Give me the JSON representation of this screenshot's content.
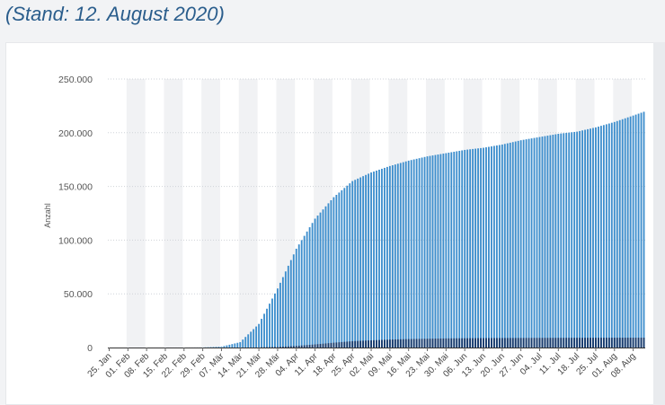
{
  "header": {
    "title": "(Stand: 12. August 2020)"
  },
  "colors": {
    "background": "#f2f3f5",
    "card": "#ffffff",
    "title": "#2a5d8c",
    "series_cases": "#3d8ecd",
    "series_deaths": "#16386a",
    "gridline": "#cfd3d8",
    "band": "#f1f2f4"
  },
  "chart_data": {
    "type": "bar",
    "title": "",
    "ylabel": "Anzahl",
    "xlabel": "",
    "ylim": [
      0,
      250000
    ],
    "yticks": [
      0,
      50000,
      100000,
      150000,
      200000,
      250000
    ],
    "ytick_labels": [
      "0",
      "50.000",
      "100.000",
      "150.000",
      "200.000",
      "250.000"
    ],
    "grid": true,
    "stacked": false,
    "x_start": "2020-01-25",
    "x_end": "2020-08-12",
    "xtick_labels": [
      "25. Jan",
      "01. Feb",
      "08. Feb",
      "15. Feb",
      "22. Feb",
      "29. Feb",
      "07. Mär",
      "14. Mär",
      "21. Mär",
      "28. Mär",
      "04. Apr",
      "11. Apr",
      "18. Apr",
      "25. Apr",
      "02. Mai",
      "09. Mai",
      "16. Mai",
      "23. Mai",
      "30. Mai",
      "06. Jun",
      "13. Jun",
      "20. Jun",
      "27. Jun",
      "04. Jul",
      "11. Jul",
      "18. Jul",
      "25. Jul",
      "01. Aug",
      "08. Aug"
    ],
    "series": [
      {
        "color": "#3d8ecd",
        "weekly_values": [
          {
            "date": "2020-01-25",
            "value": 0
          },
          {
            "date": "2020-02-01",
            "value": 10
          },
          {
            "date": "2020-02-08",
            "value": 15
          },
          {
            "date": "2020-02-15",
            "value": 16
          },
          {
            "date": "2020-02-22",
            "value": 20
          },
          {
            "date": "2020-02-29",
            "value": 100
          },
          {
            "date": "2020-03-07",
            "value": 800
          },
          {
            "date": "2020-03-14",
            "value": 5000
          },
          {
            "date": "2020-03-21",
            "value": 22000
          },
          {
            "date": "2020-03-28",
            "value": 55000
          },
          {
            "date": "2020-04-04",
            "value": 92000
          },
          {
            "date": "2020-04-11",
            "value": 120000
          },
          {
            "date": "2020-04-18",
            "value": 140000
          },
          {
            "date": "2020-04-25",
            "value": 155000
          },
          {
            "date": "2020-05-02",
            "value": 163000
          },
          {
            "date": "2020-05-09",
            "value": 169000
          },
          {
            "date": "2020-05-16",
            "value": 174000
          },
          {
            "date": "2020-05-23",
            "value": 178000
          },
          {
            "date": "2020-05-30",
            "value": 181000
          },
          {
            "date": "2020-06-06",
            "value": 184000
          },
          {
            "date": "2020-06-13",
            "value": 186000
          },
          {
            "date": "2020-06-20",
            "value": 189000
          },
          {
            "date": "2020-06-27",
            "value": 193000
          },
          {
            "date": "2020-07-04",
            "value": 196000
          },
          {
            "date": "2020-07-11",
            "value": 199000
          },
          {
            "date": "2020-07-18",
            "value": 201000
          },
          {
            "date": "2020-07-25",
            "value": 205000
          },
          {
            "date": "2020-08-01",
            "value": 210000
          },
          {
            "date": "2020-08-08",
            "value": 216000
          },
          {
            "date": "2020-08-12",
            "value": 219500
          }
        ]
      },
      {
        "color": "#16386a",
        "weekly_values": [
          {
            "date": "2020-01-25",
            "value": 0
          },
          {
            "date": "2020-03-07",
            "value": 0
          },
          {
            "date": "2020-03-14",
            "value": 10
          },
          {
            "date": "2020-03-21",
            "value": 100
          },
          {
            "date": "2020-03-28",
            "value": 500
          },
          {
            "date": "2020-04-04",
            "value": 1500
          },
          {
            "date": "2020-04-11",
            "value": 2900
          },
          {
            "date": "2020-04-18",
            "value": 4500
          },
          {
            "date": "2020-04-25",
            "value": 5900
          },
          {
            "date": "2020-05-02",
            "value": 6700
          },
          {
            "date": "2020-05-09",
            "value": 7400
          },
          {
            "date": "2020-05-16",
            "value": 7900
          },
          {
            "date": "2020-05-23",
            "value": 8200
          },
          {
            "date": "2020-05-30",
            "value": 8500
          },
          {
            "date": "2020-06-13",
            "value": 8800
          },
          {
            "date": "2020-07-04",
            "value": 9000
          },
          {
            "date": "2020-08-12",
            "value": 9200
          }
        ]
      }
    ]
  }
}
